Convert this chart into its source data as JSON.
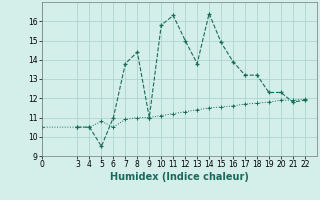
{
  "line1_x": [
    3,
    4,
    5,
    6,
    7,
    8,
    9,
    10,
    11,
    12,
    13,
    14,
    15,
    16,
    17,
    18,
    19,
    20,
    21,
    22
  ],
  "line1_y": [
    10.5,
    10.5,
    9.5,
    11.0,
    13.8,
    14.4,
    11.0,
    15.8,
    16.3,
    15.0,
    13.8,
    16.4,
    14.9,
    13.9,
    13.2,
    13.2,
    12.3,
    12.3,
    11.8,
    11.9
  ],
  "line2_x": [
    0,
    3,
    4,
    5,
    6,
    7,
    8,
    9,
    10,
    11,
    12,
    13,
    14,
    15,
    16,
    17,
    18,
    19,
    20,
    21,
    22
  ],
  "line2_y": [
    10.5,
    10.5,
    10.5,
    10.8,
    10.5,
    10.9,
    11.0,
    11.0,
    11.1,
    11.2,
    11.3,
    11.4,
    11.5,
    11.55,
    11.6,
    11.7,
    11.75,
    11.8,
    11.9,
    11.9,
    11.95
  ],
  "line_color": "#1a6b5a",
  "bg_color": "#d4eeea",
  "grid_color": "#aed4ce",
  "xlabel": "Humidex (Indice chaleur)",
  "ylim": [
    9,
    17
  ],
  "xlim": [
    0,
    23
  ],
  "yticks": [
    9,
    10,
    11,
    12,
    13,
    14,
    15,
    16
  ],
  "xticks": [
    0,
    3,
    4,
    5,
    6,
    7,
    8,
    9,
    10,
    11,
    12,
    13,
    14,
    15,
    16,
    17,
    18,
    19,
    20,
    21,
    22
  ],
  "xlabel_fontsize": 7,
  "tick_fontsize": 5.5
}
